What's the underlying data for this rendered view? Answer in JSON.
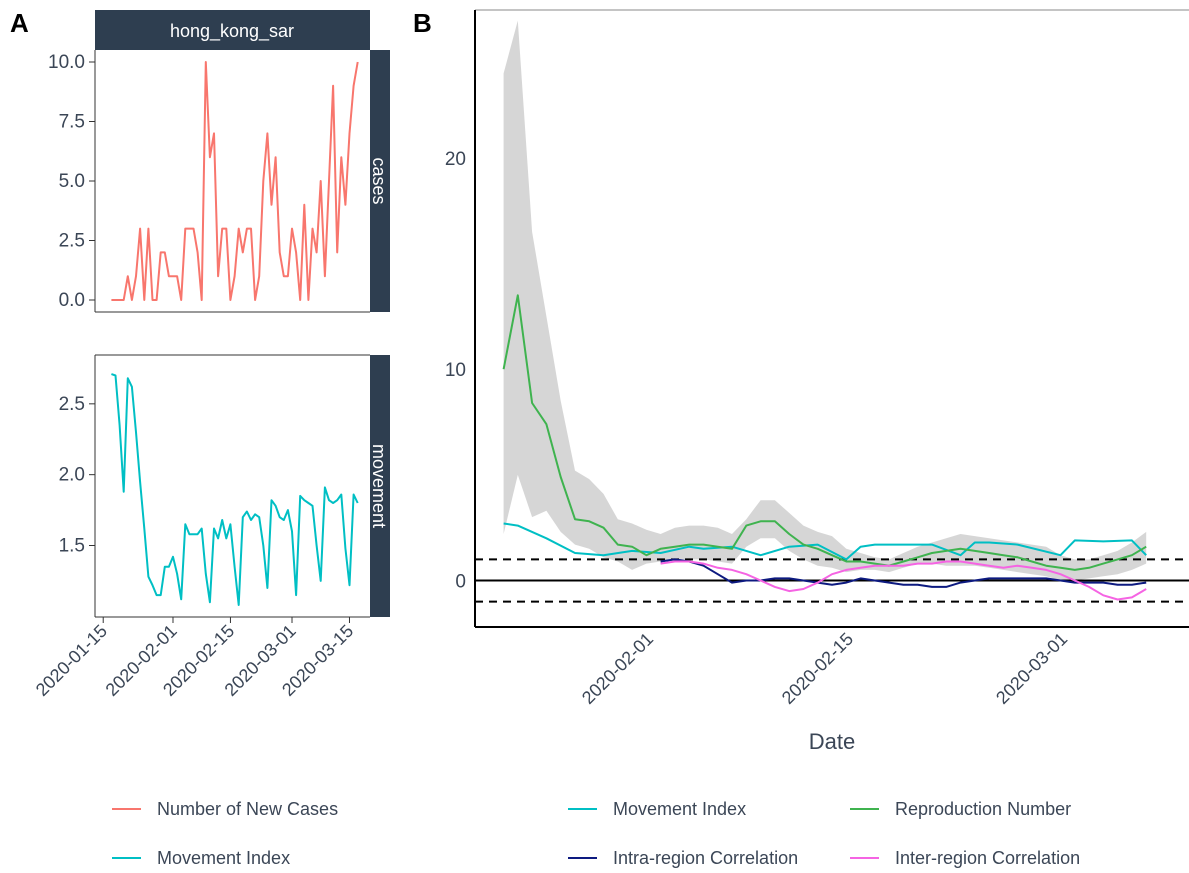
{
  "panels": {
    "a_letter": "A",
    "b_letter": "B"
  },
  "chart_data": [
    {
      "panel": "A",
      "type": "line",
      "facet_title": "hong_kong_sar",
      "facets": [
        {
          "strip_label": "cases",
          "ylim": [
            0,
            10
          ],
          "yticks": [
            0.0,
            2.5,
            5.0,
            7.5,
            10.0
          ],
          "ytick_labels": [
            "0.0",
            "2.5",
            "5.0",
            "7.5",
            "10.0"
          ],
          "series": [
            {
              "name": "Number of New Cases",
              "color": "#f8766d",
              "start_day": "2020-01-17",
              "values": [
                0,
                0,
                0,
                0,
                1,
                0,
                1,
                3,
                0,
                3,
                0,
                0,
                2,
                2,
                1,
                1,
                1,
                0,
                3,
                3,
                3,
                2,
                0,
                10,
                6,
                7,
                1,
                3,
                3,
                0,
                1,
                3,
                2,
                3,
                3,
                0,
                1,
                5,
                7,
                4,
                6,
                2,
                1,
                1,
                3,
                2,
                0,
                4,
                0,
                3,
                2,
                5,
                1,
                5,
                9,
                2,
                6,
                4,
                7,
                9,
                10
              ]
            }
          ]
        },
        {
          "strip_label": "movement",
          "ylim": [
            1.08,
            2.76
          ],
          "yticks": [
            1.5,
            2.0,
            2.5
          ],
          "ytick_labels": [
            "1.5",
            "2.0",
            "2.5"
          ],
          "series": [
            {
              "name": "Movement Index",
              "color": "#00bfc4",
              "start_day": "2020-01-17",
              "values": [
                2.71,
                2.7,
                2.35,
                1.88,
                2.68,
                2.62,
                2.3,
                1.95,
                1.62,
                1.28,
                1.22,
                1.15,
                1.15,
                1.35,
                1.35,
                1.42,
                1.3,
                1.12,
                1.65,
                1.58,
                1.58,
                1.58,
                1.62,
                1.3,
                1.1,
                1.62,
                1.55,
                1.68,
                1.55,
                1.65,
                1.35,
                1.08,
                1.7,
                1.74,
                1.68,
                1.72,
                1.7,
                1.5,
                1.2,
                1.82,
                1.78,
                1.7,
                1.68,
                1.75,
                1.6,
                1.15,
                1.85,
                1.82,
                1.8,
                1.78,
                1.5,
                1.25,
                1.91,
                1.82,
                1.8,
                1.82,
                1.86,
                1.48,
                1.22,
                1.86,
                1.8
              ]
            }
          ]
        }
      ],
      "x_tick_labels": [
        "2020-01-15",
        "2020-02-01",
        "2020-02-15",
        "2020-03-01",
        "2020-03-15"
      ],
      "x_tick_days": [
        "2020-01-15",
        "2020-02-01",
        "2020-02-15",
        "2020-03-01",
        "2020-03-15"
      ],
      "xlim": [
        "2020-01-13",
        "2020-03-20"
      ]
    },
    {
      "panel": "B",
      "type": "line",
      "xlabel": "Date",
      "ylabel": "",
      "xlim": [
        "2020-01-20",
        "2020-03-10"
      ],
      "ylim": [
        -2.2,
        27
      ],
      "yticks": [
        0,
        10,
        20
      ],
      "ytick_labels": [
        "0",
        "10",
        "20"
      ],
      "x_tick_labels": [
        "2020-02-01",
        "2020-02-15",
        "2020-03-01"
      ],
      "x_tick_days": [
        "2020-02-01",
        "2020-02-15",
        "2020-03-01"
      ],
      "reference_lines": [
        {
          "y": 0,
          "style": "solid"
        },
        {
          "y": 1,
          "style": "dashed"
        },
        {
          "y": -1,
          "style": "dashed"
        }
      ],
      "ribbon": {
        "series": "Reproduction Number",
        "color": "#c8c8c8",
        "x": [
          "2020-01-22",
          "2020-01-23",
          "2020-01-24",
          "2020-01-25",
          "2020-01-26",
          "2020-01-27",
          "2020-01-28",
          "2020-01-29",
          "2020-01-30",
          "2020-01-31",
          "2020-02-01",
          "2020-02-02",
          "2020-02-03",
          "2020-02-04",
          "2020-02-05",
          "2020-02-06",
          "2020-02-07",
          "2020-02-08",
          "2020-02-09",
          "2020-02-10",
          "2020-02-11",
          "2020-02-12",
          "2020-02-13",
          "2020-02-14",
          "2020-02-15",
          "2020-02-16",
          "2020-02-17",
          "2020-02-18",
          "2020-02-19",
          "2020-02-20",
          "2020-02-21",
          "2020-02-22",
          "2020-02-23",
          "2020-02-24",
          "2020-02-25",
          "2020-02-26",
          "2020-02-27",
          "2020-02-28",
          "2020-02-29",
          "2020-03-01",
          "2020-03-02",
          "2020-03-03",
          "2020-03-04",
          "2020-03-05",
          "2020-03-06",
          "2020-03-07"
        ],
        "upper": [
          24,
          26.5,
          16.5,
          12.5,
          8.5,
          5.2,
          4.8,
          4.1,
          2.9,
          2.7,
          2.4,
          2.2,
          2.5,
          2.6,
          2.6,
          2.5,
          2.2,
          2.9,
          3.8,
          3.8,
          3.2,
          2.6,
          2.3,
          2.1,
          1.5,
          1.3,
          1.1,
          1.0,
          1.3,
          1.6,
          1.8,
          2.0,
          2.2,
          2.1,
          2.0,
          1.9,
          1.8,
          1.7,
          1.6,
          1.2,
          1.0,
          1.0,
          1.2,
          1.4,
          1.8,
          2.3
        ],
        "lower": [
          2.2,
          5.0,
          3.0,
          3.3,
          2.3,
          1.7,
          1.5,
          1.1,
          0.9,
          0.5,
          0.8,
          0.9,
          1.0,
          1.0,
          1.0,
          0.9,
          0.8,
          1.6,
          2.0,
          2.0,
          1.4,
          1.0,
          0.7,
          0.6,
          0.4,
          0.5,
          0.5,
          0.4,
          0.6,
          0.8,
          0.8,
          0.7,
          0.7,
          0.7,
          0.6,
          0.5,
          0.4,
          0.3,
          0.2,
          0.0,
          0.0,
          0.1,
          0.2,
          0.3,
          0.5,
          0.8
        ]
      },
      "series": [
        {
          "name": "Movement Index",
          "color": "#00bfc4",
          "x": [
            "2020-01-22",
            "2020-01-23",
            "2020-01-25",
            "2020-01-27",
            "2020-01-29",
            "2020-01-31",
            "2020-02-02",
            "2020-02-04",
            "2020-02-05",
            "2020-02-07",
            "2020-02-09",
            "2020-02-11",
            "2020-02-13",
            "2020-02-15",
            "2020-02-16",
            "2020-02-17",
            "2020-02-19",
            "2020-02-21",
            "2020-02-23",
            "2020-02-24",
            "2020-02-25",
            "2020-02-27",
            "2020-03-01",
            "2020-03-02",
            "2020-03-04",
            "2020-03-06",
            "2020-03-07"
          ],
          "values": [
            2.7,
            2.6,
            2.0,
            1.3,
            1.2,
            1.4,
            1.3,
            1.6,
            1.5,
            1.6,
            1.2,
            1.6,
            1.7,
            1.0,
            1.6,
            1.7,
            1.7,
            1.7,
            1.2,
            1.8,
            1.8,
            1.7,
            1.2,
            1.9,
            1.85,
            1.9,
            1.2
          ]
        },
        {
          "name": "Reproduction Number",
          "color": "#3fb34f",
          "x": [
            "2020-01-22",
            "2020-01-23",
            "2020-01-24",
            "2020-01-25",
            "2020-01-26",
            "2020-01-27",
            "2020-01-28",
            "2020-01-29",
            "2020-01-30",
            "2020-01-31",
            "2020-02-01",
            "2020-02-02",
            "2020-02-03",
            "2020-02-04",
            "2020-02-05",
            "2020-02-06",
            "2020-02-07",
            "2020-02-08",
            "2020-02-09",
            "2020-02-10",
            "2020-02-11",
            "2020-02-12",
            "2020-02-13",
            "2020-02-14",
            "2020-02-15",
            "2020-02-16",
            "2020-02-17",
            "2020-02-18",
            "2020-02-19",
            "2020-02-20",
            "2020-02-21",
            "2020-02-22",
            "2020-02-23",
            "2020-02-24",
            "2020-02-25",
            "2020-02-26",
            "2020-02-27",
            "2020-02-28",
            "2020-02-29",
            "2020-03-01",
            "2020-03-02",
            "2020-03-03",
            "2020-03-04",
            "2020-03-05",
            "2020-03-06",
            "2020-03-07"
          ],
          "values": [
            10,
            13.5,
            8.4,
            7.4,
            4.9,
            2.9,
            2.8,
            2.5,
            1.7,
            1.6,
            1.2,
            1.5,
            1.6,
            1.7,
            1.7,
            1.6,
            1.5,
            2.6,
            2.8,
            2.8,
            2.2,
            1.7,
            1.5,
            1.2,
            0.9,
            0.9,
            0.8,
            0.7,
            0.9,
            1.1,
            1.3,
            1.4,
            1.5,
            1.4,
            1.3,
            1.2,
            1.1,
            0.9,
            0.7,
            0.6,
            0.5,
            0.6,
            0.8,
            1.0,
            1.2,
            1.6
          ]
        },
        {
          "name": "Intra-region Correlation",
          "color": "#0d1a80",
          "x": [
            "2020-02-02",
            "2020-02-03",
            "2020-02-04",
            "2020-02-05",
            "2020-02-06",
            "2020-02-07",
            "2020-02-08",
            "2020-02-09",
            "2020-02-10",
            "2020-02-11",
            "2020-02-12",
            "2020-02-13",
            "2020-02-14",
            "2020-02-15",
            "2020-02-16",
            "2020-02-17",
            "2020-02-18",
            "2020-02-19",
            "2020-02-20",
            "2020-02-21",
            "2020-02-22",
            "2020-02-23",
            "2020-02-24",
            "2020-02-25",
            "2020-02-26",
            "2020-02-27",
            "2020-02-28",
            "2020-02-29",
            "2020-03-01",
            "2020-03-02",
            "2020-03-03",
            "2020-03-04",
            "2020-03-05",
            "2020-03-06",
            "2020-03-07"
          ],
          "values": [
            0.9,
            1.0,
            0.9,
            0.7,
            0.3,
            -0.1,
            0.0,
            0.0,
            0.1,
            0.1,
            0.0,
            -0.1,
            -0.2,
            -0.1,
            0.1,
            0.0,
            -0.1,
            -0.2,
            -0.2,
            -0.3,
            -0.3,
            -0.1,
            0.0,
            0.1,
            0.1,
            0.1,
            0.1,
            0.1,
            0.0,
            -0.1,
            -0.1,
            -0.1,
            -0.2,
            -0.2,
            -0.1
          ]
        },
        {
          "name": "Inter-region Correlation",
          "color": "#f564e3",
          "x": [
            "2020-02-02",
            "2020-02-03",
            "2020-02-04",
            "2020-02-05",
            "2020-02-06",
            "2020-02-07",
            "2020-02-08",
            "2020-02-09",
            "2020-02-10",
            "2020-02-11",
            "2020-02-12",
            "2020-02-13",
            "2020-02-14",
            "2020-02-15",
            "2020-02-16",
            "2020-02-17",
            "2020-02-18",
            "2020-02-19",
            "2020-02-20",
            "2020-02-21",
            "2020-02-22",
            "2020-02-23",
            "2020-02-24",
            "2020-02-25",
            "2020-02-26",
            "2020-02-27",
            "2020-02-28",
            "2020-02-29",
            "2020-03-01",
            "2020-03-02",
            "2020-03-03",
            "2020-03-04",
            "2020-03-05",
            "2020-03-06",
            "2020-03-07"
          ],
          "values": [
            0.8,
            0.9,
            0.9,
            0.8,
            0.6,
            0.5,
            0.3,
            0.0,
            -0.3,
            -0.5,
            -0.4,
            -0.1,
            0.3,
            0.5,
            0.6,
            0.7,
            0.7,
            0.7,
            0.8,
            0.8,
            0.9,
            0.9,
            0.8,
            0.7,
            0.6,
            0.7,
            0.6,
            0.5,
            0.3,
            0.0,
            -0.3,
            -0.7,
            -0.9,
            -0.8,
            -0.4
          ]
        }
      ]
    }
  ],
  "legends": {
    "A": [
      {
        "label": "Number of New Cases",
        "color": "#f8766d"
      },
      {
        "label": "Movement Index",
        "color": "#00bfc4"
      }
    ],
    "B": [
      {
        "label": "Movement Index",
        "color": "#00bfc4"
      },
      {
        "label": "Reproduction Number",
        "color": "#3fb34f"
      },
      {
        "label": "Intra-region Correlation",
        "color": "#0d1a80"
      },
      {
        "label": "Inter-region Correlation",
        "color": "#f564e3"
      }
    ]
  },
  "colors": {
    "strip_fill": "#2e3e50",
    "ribbon": "#c8c8c8"
  }
}
